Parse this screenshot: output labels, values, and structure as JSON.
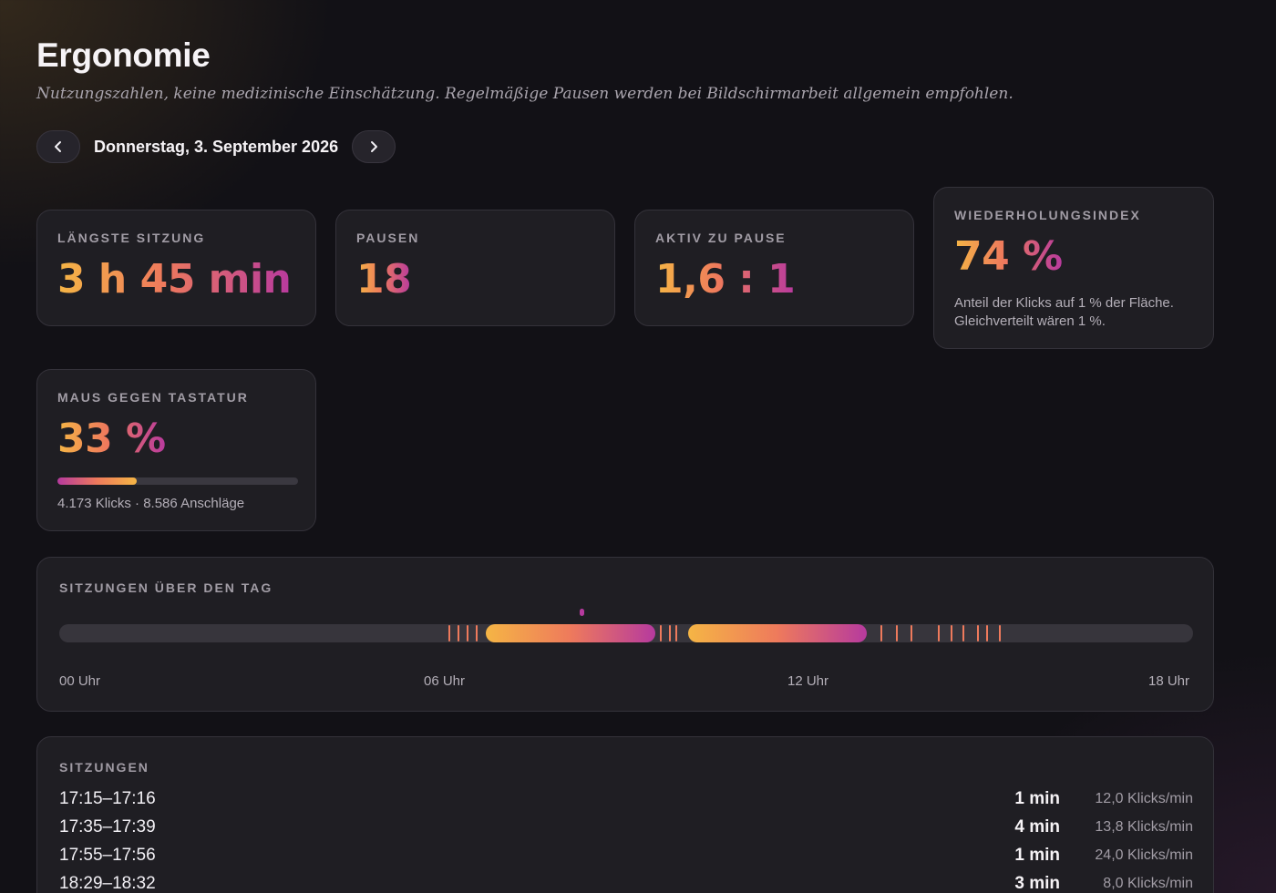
{
  "page": {
    "title": "Ergonomie",
    "subtitle": "Nutzungszahlen, keine medizinische Einschätzung. Regelmäßige Pausen werden bei Bildschirmarbeit allgemein empfohlen."
  },
  "date_nav": {
    "label": "Donnerstag, 3. September 2026",
    "prev_icon": "chevron-left-icon",
    "next_icon": "chevron-right-icon"
  },
  "stats": {
    "longest_session": {
      "label": "Längste Sitzung",
      "value": "3 h 45 min"
    },
    "breaks": {
      "label": "Pausen",
      "value": "18"
    },
    "active_ratio": {
      "label": "Aktiv zu Pause",
      "value": "1,6 : 1"
    },
    "repetition": {
      "label": "Wiederholungsindex",
      "value": "74 %",
      "desc_line1": "Anteil der Klicks auf 1 % der Fläche.",
      "desc_line2": "Gleichverteilt wären 1 %."
    },
    "mouse_keyboard": {
      "label": "Maus gegen Tastatur",
      "value": "33 %",
      "fraction": 0.33,
      "detail": "4.173 Klicks · 8.586 Anschläge"
    }
  },
  "timeline": {
    "label": "Sitzungen über den Tag",
    "axis_labels": [
      "00 Uhr",
      "06 Uhr",
      "12 Uhr",
      "18 Uhr"
    ],
    "range_hours": [
      0,
      18.75
    ],
    "sessions": [
      {
        "start_hour": 7.05,
        "end_hour": 9.85
      },
      {
        "start_hour": 10.4,
        "end_hour": 13.35
      }
    ],
    "ticks_hours": [
      6.45,
      6.6,
      6.75,
      6.9,
      9.95,
      10.1,
      10.2,
      13.6,
      13.85,
      14.1,
      14.55,
      14.75,
      14.95,
      15.2,
      15.35,
      15.55
    ],
    "marker_hour": 8.65,
    "colors": {
      "start": "#f5b545",
      "mid": "#ee7a5c",
      "end": "#b63a9e",
      "track": "#37353c"
    }
  },
  "sessions_list": {
    "label": "Sitzungen",
    "rows": [
      {
        "time": "17:15–17:16",
        "duration": "1 min",
        "rate": "12,0 Klicks/min"
      },
      {
        "time": "17:35–17:39",
        "duration": "4 min",
        "rate": "13,8 Klicks/min"
      },
      {
        "time": "17:55–17:56",
        "duration": "1 min",
        "rate": "24,0 Klicks/min"
      },
      {
        "time": "18:29–18:32",
        "duration": "3 min",
        "rate": "8,0 Klicks/min"
      }
    ]
  }
}
